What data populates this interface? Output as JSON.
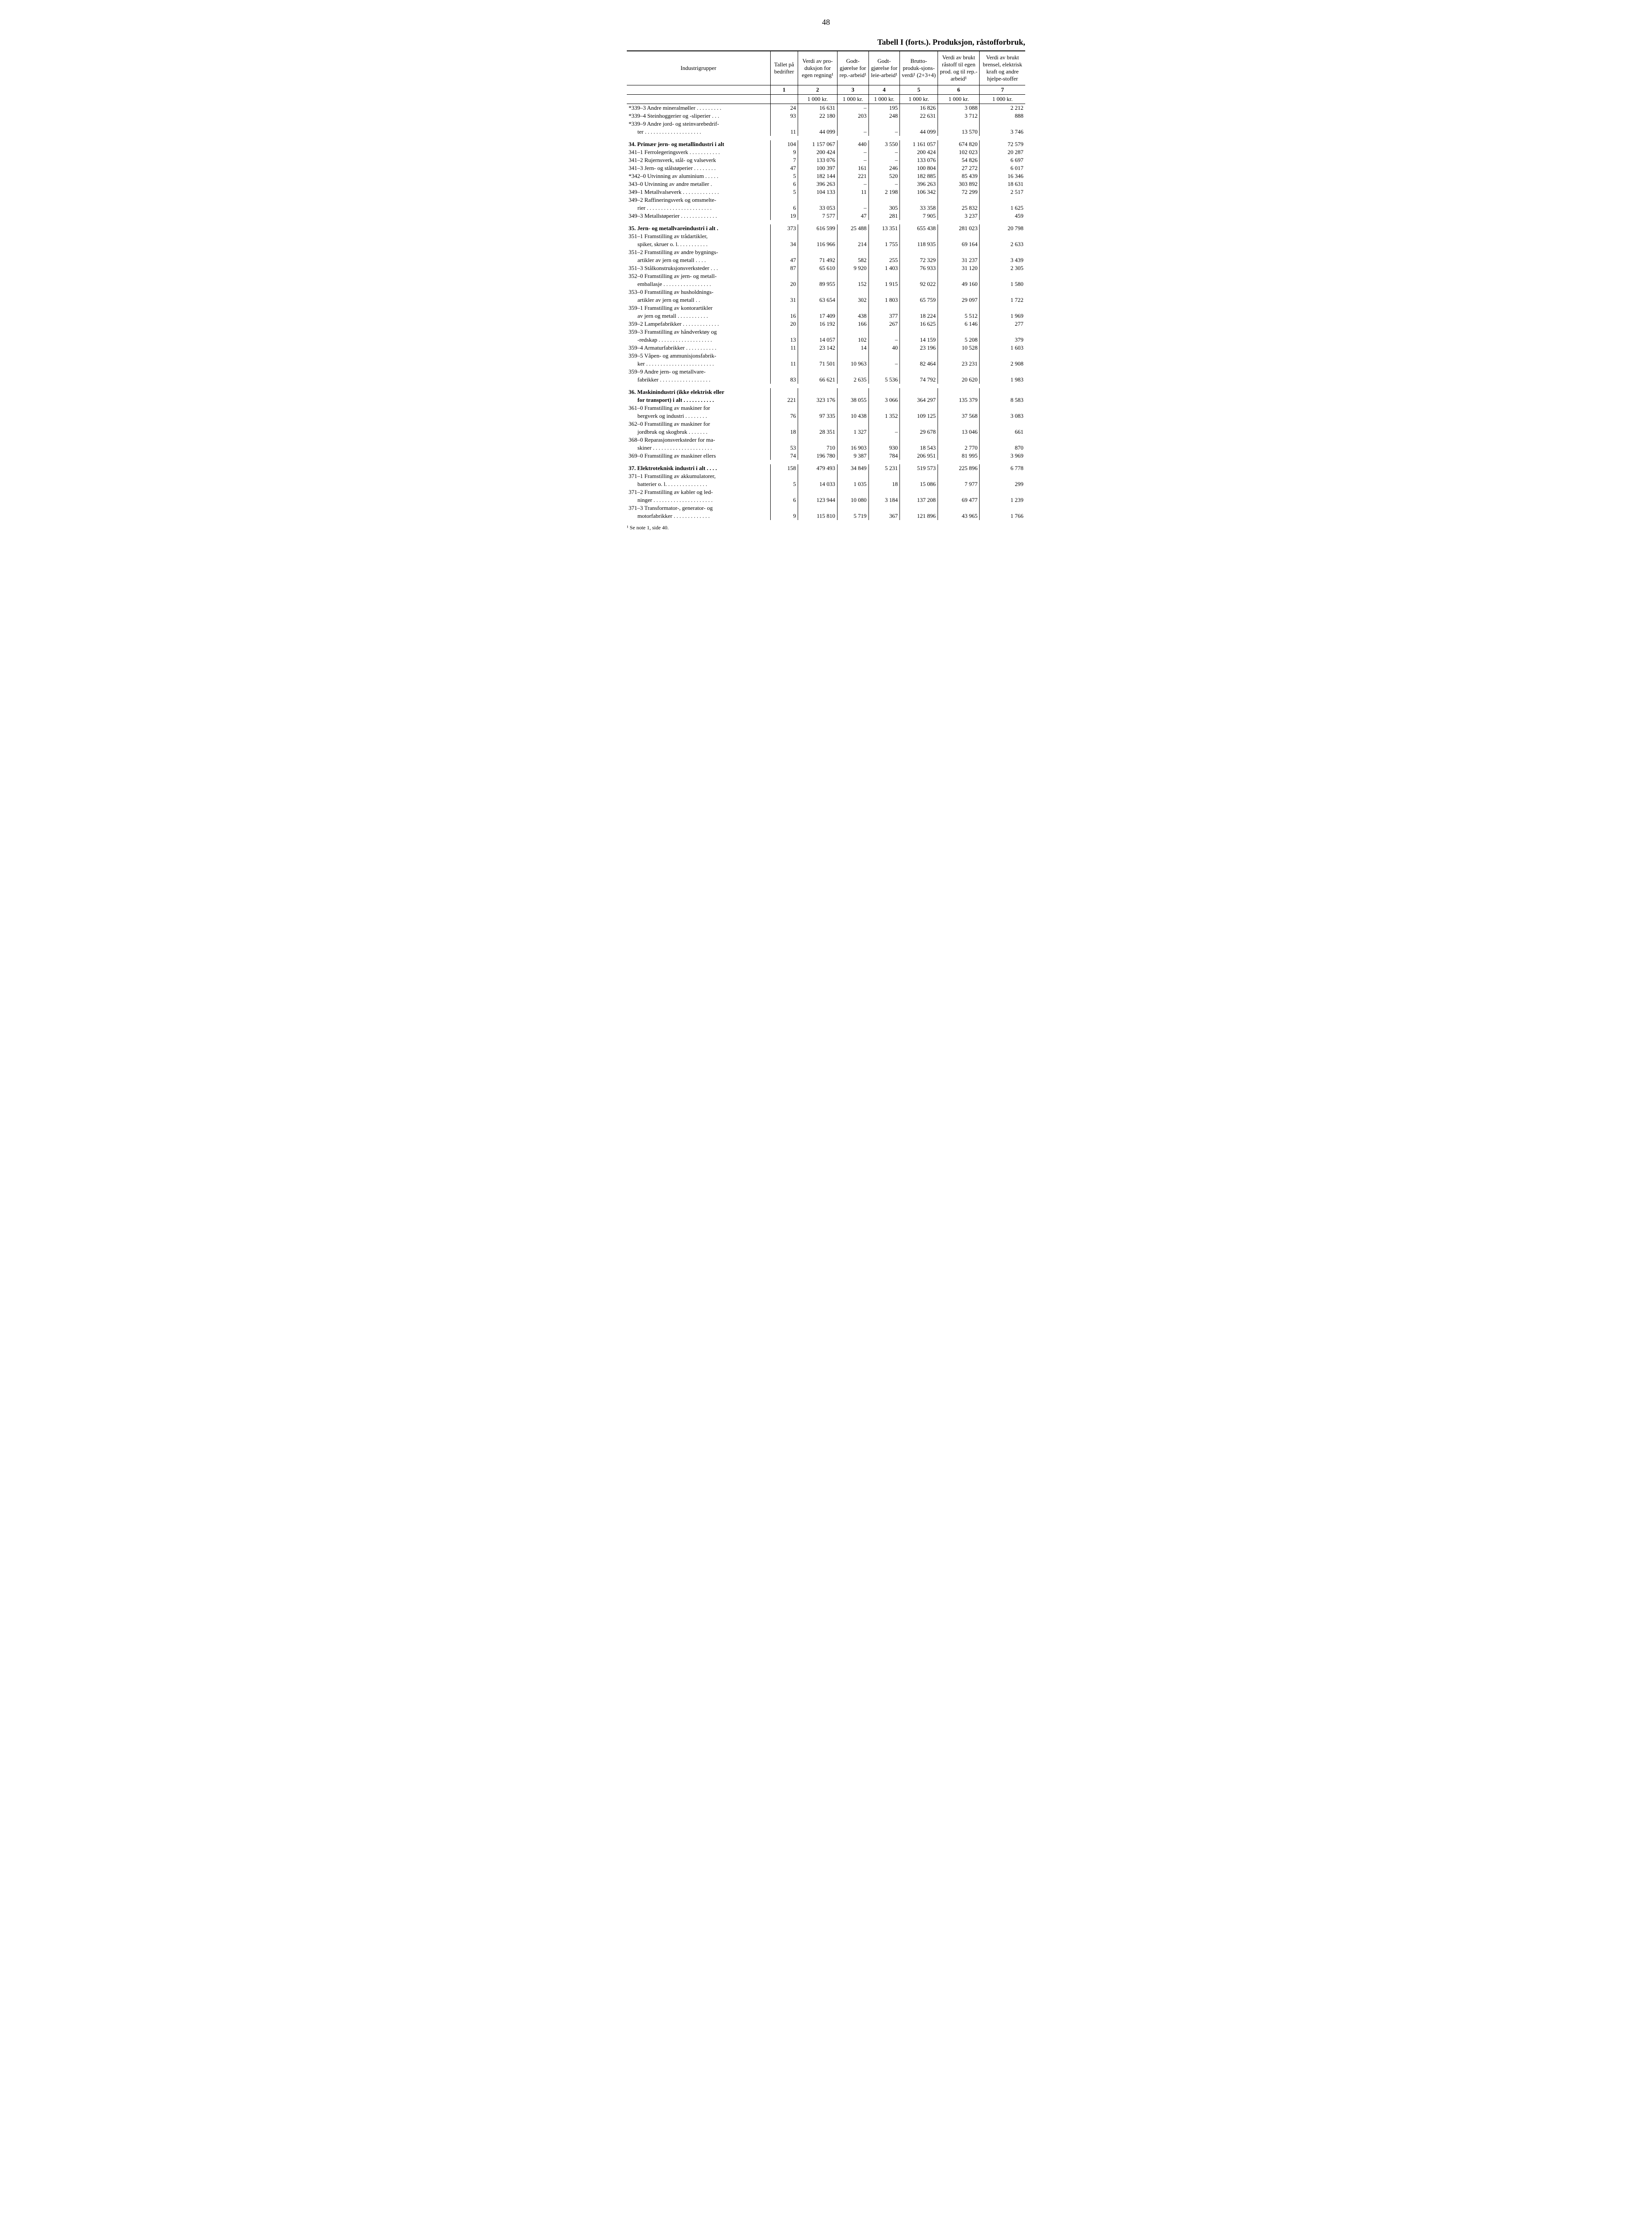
{
  "page_number": "48",
  "table_title": "Tabell I (forts.). Produksjon, råstofforbruk,",
  "columns": {
    "rowhead": "Industrigrupper",
    "c1": "Tallet på bedrifter",
    "c2": "Verdi av pro-duksjon for egen regning¹",
    "c3": "Godt-gjørelse for rep.-arbeid¹",
    "c4": "Godt-gjørelse for leie-arbeid¹",
    "c5": "Brutto-produk-sjons-verdi¹ (2+3+4)",
    "c6": "Verdi av brukt råstoff til egen prod. og til rep.-arbeid¹",
    "c7": "Verdi av brukt brensel, elektrisk kraft og andre hjelpe-stoffer"
  },
  "colnums": [
    "1",
    "2",
    "3",
    "4",
    "5",
    "6",
    "7"
  ],
  "unit": "1 000 kr.",
  "footnote": "¹ Se note 1, side 40.",
  "rows": [
    {
      "label": "*339–3 Andre mineralmøller . . . . . . . . .",
      "vals": [
        "24",
        "16 631",
        "–",
        "195",
        "16 826",
        "3 088",
        "2 212"
      ]
    },
    {
      "label": "*339–4 Steinhoggerier og -sliperier . . .",
      "vals": [
        "93",
        "22 180",
        "203",
        "248",
        "22 631",
        "3 712",
        "888"
      ]
    },
    {
      "label": "*339–9 Andre jord- og steinvarebedrif-",
      "vals": [
        "",
        "",
        "",
        "",
        "",
        "",
        ""
      ]
    },
    {
      "label": "ter . . . . . . . . . . . . . . . . . . . .",
      "indent": true,
      "vals": [
        "11",
        "44 099",
        "–",
        "–",
        "44 099",
        "13 570",
        "3 746"
      ]
    },
    {
      "spacer": true
    },
    {
      "section": true,
      "label": "34. Primær jern- og metallindustri i alt",
      "vals": [
        "104",
        "1 157 067",
        "440",
        "3 550",
        "1 161 057",
        "674 820",
        "72 579"
      ]
    },
    {
      "label": "341–1 Ferrolegeringsverk . . . . . . . . . . .",
      "vals": [
        "9",
        "200 424",
        "–",
        "–",
        "200 424",
        "102 023",
        "20 287"
      ]
    },
    {
      "label": "341–2 Rujernsverk, stål- og valseverk",
      "vals": [
        "7",
        "133 076",
        "–",
        "–",
        "133 076",
        "54 826",
        "6 697"
      ]
    },
    {
      "label": "341–3 Jern- og stålstøperier . . . . . . . .",
      "vals": [
        "47",
        "100 397",
        "161",
        "246",
        "100 804",
        "27 272",
        "6 017"
      ]
    },
    {
      "label": "*342–0 Utvinning av aluminium . . . . .",
      "vals": [
        "5",
        "182 144",
        "221",
        "520",
        "182 885",
        "85 439",
        "16 346"
      ]
    },
    {
      "label": "343–0 Utvinning av andre metaller .",
      "vals": [
        "6",
        "396 263",
        "–",
        "–",
        "396 263",
        "303 892",
        "18 631"
      ]
    },
    {
      "label": "349–1 Metallvalseverk . . . . . . . . . . . . .",
      "vals": [
        "5",
        "104 133",
        "11",
        "2 198",
        "106 342",
        "72 299",
        "2 517"
      ]
    },
    {
      "label": "349–2 Raffineringsverk og omsmelte-",
      "vals": [
        "",
        "",
        "",
        "",
        "",
        "",
        ""
      ]
    },
    {
      "label": "rier . . . . . . . . . . . . . . . . . . . . . . .",
      "indent": true,
      "vals": [
        "6",
        "33 053",
        "–",
        "305",
        "33 358",
        "25 832",
        "1 625"
      ]
    },
    {
      "label": "349–3 Metallstøperier . . . . . . . . . . . . .",
      "vals": [
        "19",
        "7 577",
        "47",
        "281",
        "7 905",
        "3 237",
        "459"
      ]
    },
    {
      "spacer": true
    },
    {
      "section": true,
      "label": "35. Jern- og metallvareindustri i alt .",
      "vals": [
        "373",
        "616 599",
        "25 488",
        "13 351",
        "655 438",
        "281 023",
        "20 798"
      ]
    },
    {
      "label": "351–1 Framstilling av trådartikler,",
      "vals": [
        "",
        "",
        "",
        "",
        "",
        "",
        ""
      ]
    },
    {
      "label": "spiker, skruer o. l. . . . . . . . . . .",
      "indent": true,
      "vals": [
        "34",
        "116 966",
        "214",
        "1 755",
        "118 935",
        "69 164",
        "2 633"
      ]
    },
    {
      "label": "351–2 Framstilling av andre bygnings-",
      "vals": [
        "",
        "",
        "",
        "",
        "",
        "",
        ""
      ]
    },
    {
      "label": "artikler av jern og metall . . . .",
      "indent": true,
      "vals": [
        "47",
        "71 492",
        "582",
        "255",
        "72 329",
        "31 237",
        "3 439"
      ]
    },
    {
      "label": "351–3 Stålkonstruksjonsverksteder . . .",
      "vals": [
        "87",
        "65 610",
        "9 920",
        "1 403",
        "76 933",
        "31 120",
        "2 305"
      ]
    },
    {
      "label": "352–0 Framstilling av jern- og metall-",
      "vals": [
        "",
        "",
        "",
        "",
        "",
        "",
        ""
      ]
    },
    {
      "label": "emballasje . . . . . . . . . . . . . . . . .",
      "indent": true,
      "vals": [
        "20",
        "89 955",
        "152",
        "1 915",
        "92 022",
        "49 160",
        "1 580"
      ]
    },
    {
      "label": "353–0 Framstilling av husholdnings-",
      "vals": [
        "",
        "",
        "",
        "",
        "",
        "",
        ""
      ]
    },
    {
      "label": "artikler av jern og metall  . .",
      "indent": true,
      "vals": [
        "31",
        "63 654",
        "302",
        "1 803",
        "65 759",
        "29 097",
        "1 722"
      ]
    },
    {
      "label": "359–1 Framstilling av kontorartikler",
      "vals": [
        "",
        "",
        "",
        "",
        "",
        "",
        ""
      ]
    },
    {
      "label": "av jern og metall . . . . . . . . . . .",
      "indent": true,
      "vals": [
        "16",
        "17 409",
        "438",
        "377",
        "18 224",
        "5 512",
        "1 969"
      ]
    },
    {
      "label": "359–2 Lampefabrikker . . . . . . . . . . . . .",
      "vals": [
        "20",
        "16 192",
        "166",
        "267",
        "16 625",
        "6 146",
        "277"
      ]
    },
    {
      "label": "359–3 Framstilling av håndverktøy og",
      "vals": [
        "",
        "",
        "",
        "",
        "",
        "",
        ""
      ]
    },
    {
      "label": "-redskap . . . . . . . . . . . . . . . . . . .",
      "indent": true,
      "vals": [
        "13",
        "14 057",
        "102",
        "–",
        "14 159",
        "5 208",
        "379"
      ]
    },
    {
      "label": "359–4 Armaturfabrikker . . . . . . . . . . .",
      "vals": [
        "11",
        "23 142",
        "14",
        "40",
        "23 196",
        "10 528",
        "1 603"
      ]
    },
    {
      "label": "359–5 Våpen- og ammunisjonsfabrik-",
      "vals": [
        "",
        "",
        "",
        "",
        "",
        "",
        ""
      ]
    },
    {
      "label": "ker . . . . . . . . . . . . . . . . . . . . . . . .",
      "indent": true,
      "vals": [
        "11",
        "71 501",
        "10 963",
        "–",
        "82 464",
        "23 231",
        "2 908"
      ]
    },
    {
      "label": "359–9 Andre jern- og metallvare-",
      "vals": [
        "",
        "",
        "",
        "",
        "",
        "",
        ""
      ]
    },
    {
      "label": "fabrikker . . . . . . . . . . . . . . . . . .",
      "indent": true,
      "vals": [
        "83",
        "66 621",
        "2 635",
        "5 536",
        "74 792",
        "20 620",
        "1 983"
      ]
    },
    {
      "spacer": true
    },
    {
      "section": true,
      "label": "36. Maskinindustri (ikke elektrisk eller",
      "vals": [
        "",
        "",
        "",
        "",
        "",
        "",
        ""
      ]
    },
    {
      "section": true,
      "label": "for transport) i alt  . . . . . . . . . . .",
      "indent": true,
      "vals": [
        "221",
        "323 176",
        "38 055",
        "3 066",
        "364 297",
        "135 379",
        "8 583"
      ]
    },
    {
      "label": "361–0 Framstilling av maskiner for",
      "vals": [
        "",
        "",
        "",
        "",
        "",
        "",
        ""
      ]
    },
    {
      "label": "bergverk og industri . . . . . . . .",
      "indent": true,
      "vals": [
        "76",
        "97 335",
        "10 438",
        "1 352",
        "109 125",
        "37 568",
        "3 083"
      ]
    },
    {
      "label": "362–0 Framstilling av maskiner for",
      "vals": [
        "",
        "",
        "",
        "",
        "",
        "",
        ""
      ]
    },
    {
      "label": "jordbruk og skogbruk . . . . . . .",
      "indent": true,
      "vals": [
        "18",
        "28 351",
        "1 327",
        "–",
        "29 678",
        "13 046",
        "661"
      ]
    },
    {
      "label": "368–0 Reparasjonsverksteder for ma-",
      "vals": [
        "",
        "",
        "",
        "",
        "",
        "",
        ""
      ]
    },
    {
      "label": "skiner . . . . . . . . . . . . . . . . . . . . .",
      "indent": true,
      "vals": [
        "53",
        "710",
        "16 903",
        "930",
        "18 543",
        "2 770",
        "870"
      ]
    },
    {
      "label": "369–0 Framstilling av maskiner ellers",
      "vals": [
        "74",
        "196 780",
        "9 387",
        "784",
        "206 951",
        "81 995",
        "3 969"
      ]
    },
    {
      "spacer": true
    },
    {
      "section": true,
      "label": "37. Elektroteknisk industri i alt . . . .",
      "vals": [
        "158",
        "479 493",
        "34 849",
        "5 231",
        "519 573",
        "225 896",
        "6 778"
      ]
    },
    {
      "label": "371–1 Framstilling av akkumulatorer,",
      "vals": [
        "",
        "",
        "",
        "",
        "",
        "",
        ""
      ]
    },
    {
      "label": "batterier o. l. . . . . . . . . . . . . . .",
      "indent": true,
      "vals": [
        "5",
        "14 033",
        "1 035",
        "18",
        "15 086",
        "7 977",
        "299"
      ]
    },
    {
      "label": "371–2 Framstilling av kabler og led-",
      "vals": [
        "",
        "",
        "",
        "",
        "",
        "",
        ""
      ]
    },
    {
      "label": "ninger . . . . . . . . . . . . . . . . . . . . .",
      "indent": true,
      "vals": [
        "6",
        "123 944",
        "10 080",
        "3 184",
        "137 208",
        "69 477",
        "1 239"
      ]
    },
    {
      "label": "371–3 Transformator-, generator- og",
      "vals": [
        "",
        "",
        "",
        "",
        "",
        "",
        ""
      ]
    },
    {
      "label": "motorfabrikker . . . . . . . . . . . . .",
      "indent": true,
      "vals": [
        "9",
        "115 810",
        "5 719",
        "367",
        "121 896",
        "43 965",
        "1 766"
      ]
    }
  ]
}
